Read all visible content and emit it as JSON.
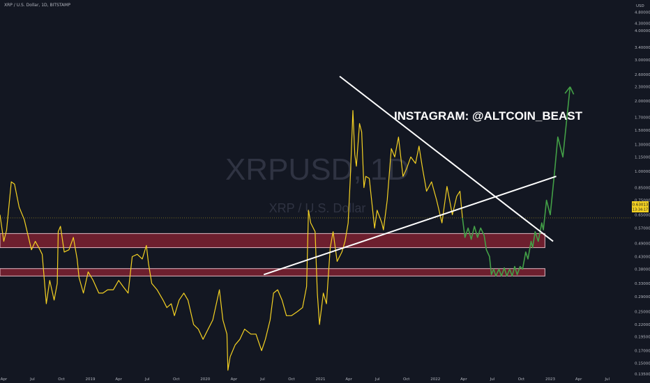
{
  "header": {
    "symbol_line": "XRP / U.S. Dollar, 1D, BITSTAMP",
    "currency": "USD"
  },
  "watermark": {
    "ticker": "XRPUSD, 1D",
    "description": "XRP / U.S. Dollar"
  },
  "annotation": "INSTAGRAM: @ALTCOIN_BEAST",
  "price_label": {
    "price": "0.63013",
    "countdown": "13:34:17"
  },
  "colors": {
    "background": "#131722",
    "price_line": "#f5d222",
    "projection": "#43a047",
    "trendline": "#ffffff",
    "zone_fill": "#6d1f2e",
    "zone_border": "#e3b9c4",
    "axis_text": "#b2b5be"
  },
  "chart_data": {
    "type": "line",
    "y_scale": "log",
    "ylim": [
      0.135,
      5.2
    ],
    "xlim": [
      "2018-03-20",
      "2023-09-15"
    ],
    "y_ticks": [
      "4.80000",
      "4.30000",
      "4.00000",
      "3.40000",
      "3.00000",
      "2.60000",
      "2.30000",
      "2.00000",
      "1.70000",
      "1.50000",
      "1.30000",
      "1.15000",
      "1.00000",
      "0.85000",
      "0.75000",
      "0.65000",
      "0.57000",
      "0.49000",
      "0.43000",
      "0.38000",
      "0.33000",
      "0.29000",
      "0.25000",
      "0.22000",
      "0.19500",
      "0.17000",
      "0.15000",
      "0.13500"
    ],
    "x_ticks": [
      {
        "date": "2018-04-01",
        "label": "Apr"
      },
      {
        "date": "2018-07-01",
        "label": "Jul"
      },
      {
        "date": "2018-10-01",
        "label": "Oct"
      },
      {
        "date": "2019-01-01",
        "label": "2019"
      },
      {
        "date": "2019-04-01",
        "label": "Apr"
      },
      {
        "date": "2019-07-01",
        "label": "Jul"
      },
      {
        "date": "2019-10-01",
        "label": "Oct"
      },
      {
        "date": "2020-01-01",
        "label": "2020"
      },
      {
        "date": "2020-04-01",
        "label": "Apr"
      },
      {
        "date": "2020-07-01",
        "label": "Jul"
      },
      {
        "date": "2020-10-01",
        "label": "Oct"
      },
      {
        "date": "2021-01-01",
        "label": "2021"
      },
      {
        "date": "2021-04-01",
        "label": "Apr"
      },
      {
        "date": "2021-07-01",
        "label": "Jul"
      },
      {
        "date": "2021-10-01",
        "label": "Oct"
      },
      {
        "date": "2022-01-01",
        "label": "2022"
      },
      {
        "date": "2022-04-01",
        "label": "Apr"
      },
      {
        "date": "2022-07-01",
        "label": "Jul"
      },
      {
        "date": "2022-10-01",
        "label": "Oct"
      },
      {
        "date": "2023-01-01",
        "label": "2023"
      },
      {
        "date": "2023-04-01",
        "label": "Apr"
      },
      {
        "date": "2023-07-01",
        "label": "Jul"
      }
    ],
    "current_price": 0.63013,
    "series": [
      {
        "role": "price",
        "points": [
          [
            "2018-03-20",
            0.65
          ],
          [
            "2018-04-01",
            0.5
          ],
          [
            "2018-04-10",
            0.56
          ],
          [
            "2018-04-25",
            0.9
          ],
          [
            "2018-05-05",
            0.88
          ],
          [
            "2018-05-20",
            0.7
          ],
          [
            "2018-06-05",
            0.62
          ],
          [
            "2018-06-28",
            0.46
          ],
          [
            "2018-07-10",
            0.5
          ],
          [
            "2018-07-25",
            0.46
          ],
          [
            "2018-08-01",
            0.44
          ],
          [
            "2018-08-14",
            0.27
          ],
          [
            "2018-08-25",
            0.34
          ],
          [
            "2018-09-08",
            0.28
          ],
          [
            "2018-09-18",
            0.33
          ],
          [
            "2018-09-21",
            0.55
          ],
          [
            "2018-09-28",
            0.58
          ],
          [
            "2018-10-10",
            0.45
          ],
          [
            "2018-10-25",
            0.46
          ],
          [
            "2018-11-08",
            0.52
          ],
          [
            "2018-11-20",
            0.42
          ],
          [
            "2018-11-26",
            0.35
          ],
          [
            "2018-12-10",
            0.3
          ],
          [
            "2018-12-25",
            0.37
          ],
          [
            "2019-01-10",
            0.34
          ],
          [
            "2019-01-28",
            0.3
          ],
          [
            "2019-02-10",
            0.3
          ],
          [
            "2019-02-25",
            0.31
          ],
          [
            "2019-03-15",
            0.31
          ],
          [
            "2019-04-01",
            0.34
          ],
          [
            "2019-04-15",
            0.32
          ],
          [
            "2019-05-01",
            0.3
          ],
          [
            "2019-05-14",
            0.43
          ],
          [
            "2019-05-30",
            0.44
          ],
          [
            "2019-06-15",
            0.42
          ],
          [
            "2019-06-28",
            0.48
          ],
          [
            "2019-07-05",
            0.4
          ],
          [
            "2019-07-15",
            0.33
          ],
          [
            "2019-08-01",
            0.31
          ],
          [
            "2019-08-20",
            0.28
          ],
          [
            "2019-09-01",
            0.26
          ],
          [
            "2019-09-15",
            0.27
          ],
          [
            "2019-09-25",
            0.24
          ],
          [
            "2019-10-10",
            0.28
          ],
          [
            "2019-10-25",
            0.3
          ],
          [
            "2019-11-07",
            0.28
          ],
          [
            "2019-11-25",
            0.22
          ],
          [
            "2019-12-10",
            0.21
          ],
          [
            "2019-12-25",
            0.19
          ],
          [
            "2020-01-10",
            0.21
          ],
          [
            "2020-01-25",
            0.23
          ],
          [
            "2020-02-15",
            0.31
          ],
          [
            "2020-02-26",
            0.23
          ],
          [
            "2020-03-10",
            0.2
          ],
          [
            "2020-03-13",
            0.14
          ],
          [
            "2020-03-20",
            0.16
          ],
          [
            "2020-04-05",
            0.18
          ],
          [
            "2020-04-20",
            0.19
          ],
          [
            "2020-05-05",
            0.21
          ],
          [
            "2020-05-25",
            0.2
          ],
          [
            "2020-06-10",
            0.2
          ],
          [
            "2020-06-28",
            0.17
          ],
          [
            "2020-07-10",
            0.19
          ],
          [
            "2020-07-25",
            0.23
          ],
          [
            "2020-08-05",
            0.3
          ],
          [
            "2020-08-18",
            0.31
          ],
          [
            "2020-09-01",
            0.28
          ],
          [
            "2020-09-15",
            0.24
          ],
          [
            "2020-10-01",
            0.24
          ],
          [
            "2020-10-20",
            0.25
          ],
          [
            "2020-11-05",
            0.26
          ],
          [
            "2020-11-18",
            0.32
          ],
          [
            "2020-11-24",
            0.68
          ],
          [
            "2020-12-01",
            0.6
          ],
          [
            "2020-12-15",
            0.55
          ],
          [
            "2020-12-22",
            0.3
          ],
          [
            "2020-12-29",
            0.22
          ],
          [
            "2021-01-10",
            0.3
          ],
          [
            "2021-01-20",
            0.27
          ],
          [
            "2021-02-01",
            0.47
          ],
          [
            "2021-02-10",
            0.55
          ],
          [
            "2021-02-23",
            0.41
          ],
          [
            "2021-03-10",
            0.45
          ],
          [
            "2021-03-20",
            0.5
          ],
          [
            "2021-03-30",
            0.6
          ],
          [
            "2021-04-06",
            0.95
          ],
          [
            "2021-04-14",
            1.82
          ],
          [
            "2021-04-20",
            1.18
          ],
          [
            "2021-04-25",
            1.05
          ],
          [
            "2021-05-05",
            1.6
          ],
          [
            "2021-05-12",
            1.47
          ],
          [
            "2021-05-19",
            0.85
          ],
          [
            "2021-05-25",
            0.95
          ],
          [
            "2021-06-05",
            0.93
          ],
          [
            "2021-06-22",
            0.57
          ],
          [
            "2021-06-30",
            0.68
          ],
          [
            "2021-07-15",
            0.6
          ],
          [
            "2021-07-20",
            0.56
          ],
          [
            "2021-08-01",
            0.75
          ],
          [
            "2021-08-14",
            1.25
          ],
          [
            "2021-08-25",
            1.15
          ],
          [
            "2021-09-06",
            1.4
          ],
          [
            "2021-09-20",
            0.95
          ],
          [
            "2021-10-01",
            1.02
          ],
          [
            "2021-10-15",
            1.15
          ],
          [
            "2021-10-30",
            1.08
          ],
          [
            "2021-11-10",
            1.28
          ],
          [
            "2021-11-20",
            1.05
          ],
          [
            "2021-12-04",
            0.82
          ],
          [
            "2021-12-20",
            0.9
          ],
          [
            "2022-01-05",
            0.75
          ],
          [
            "2022-01-22",
            0.6
          ],
          [
            "2022-02-07",
            0.86
          ],
          [
            "2022-02-24",
            0.65
          ],
          [
            "2022-03-10",
            0.78
          ],
          [
            "2022-03-20",
            0.82
          ],
          [
            "2022-03-28",
            0.63
          ]
        ]
      },
      {
        "role": "projection",
        "points": [
          [
            "2022-03-28",
            0.63
          ],
          [
            "2022-04-05",
            0.52
          ],
          [
            "2022-04-15",
            0.57
          ],
          [
            "2022-04-25",
            0.51
          ],
          [
            "2022-05-05",
            0.58
          ],
          [
            "2022-05-15",
            0.52
          ],
          [
            "2022-05-25",
            0.57
          ],
          [
            "2022-06-05",
            0.53
          ],
          [
            "2022-06-12",
            0.46
          ],
          [
            "2022-06-22",
            0.43
          ],
          [
            "2022-06-28",
            0.36
          ],
          [
            "2022-07-05",
            0.38
          ],
          [
            "2022-07-12",
            0.355
          ],
          [
            "2022-07-22",
            0.38
          ],
          [
            "2022-07-30",
            0.355
          ],
          [
            "2022-08-08",
            0.385
          ],
          [
            "2022-08-16",
            0.355
          ],
          [
            "2022-08-25",
            0.38
          ],
          [
            "2022-09-02",
            0.355
          ],
          [
            "2022-09-10",
            0.39
          ],
          [
            "2022-09-18",
            0.36
          ],
          [
            "2022-09-27",
            0.39
          ],
          [
            "2022-10-05",
            0.38
          ],
          [
            "2022-10-15",
            0.45
          ],
          [
            "2022-10-22",
            0.42
          ],
          [
            "2022-11-01",
            0.5
          ],
          [
            "2022-11-06",
            0.47
          ],
          [
            "2022-11-14",
            0.55
          ],
          [
            "2022-11-24",
            0.5
          ],
          [
            "2022-12-05",
            0.6
          ],
          [
            "2022-12-10",
            0.56
          ],
          [
            "2022-12-20",
            0.75
          ],
          [
            "2023-01-01",
            0.65
          ],
          [
            "2023-01-15",
            1.0
          ],
          [
            "2023-01-25",
            1.4
          ],
          [
            "2023-02-10",
            1.15
          ],
          [
            "2023-03-05",
            2.3
          ]
        ]
      }
    ],
    "trendlines": [
      {
        "from": [
          "2021-03-03",
          2.55
        ],
        "to": [
          "2023-01-10",
          0.5
        ]
      },
      {
        "from": [
          "2020-07-05",
          0.36
        ],
        "to": [
          "2023-01-20",
          0.95
        ]
      }
    ],
    "zones": [
      {
        "start": "2018-03-20",
        "end": "2022-12-15",
        "low": 0.47,
        "high": 0.54
      },
      {
        "start": "2018-03-20",
        "end": "2022-12-15",
        "low": 0.355,
        "high": 0.382
      }
    ]
  }
}
